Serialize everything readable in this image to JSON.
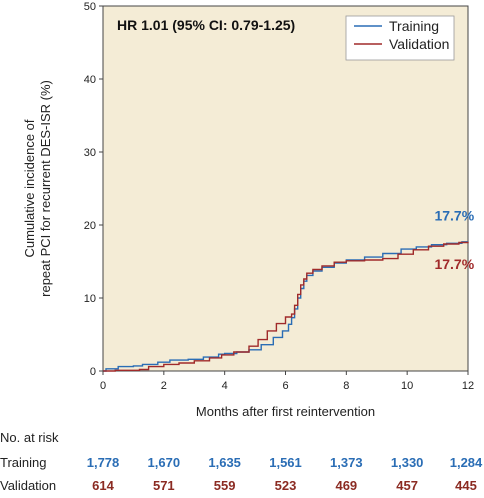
{
  "chart_data": {
    "type": "line",
    "title": "",
    "xlabel": "Months after first reintervention",
    "ylabel_line1": "Cumulative incidence of",
    "ylabel_line2": "repeat PCI for recurrent DES-ISR (%)",
    "xlim": [
      0,
      12
    ],
    "ylim": [
      0,
      50
    ],
    "xticks": [
      "0",
      "2",
      "4",
      "6",
      "8",
      "10",
      "12"
    ],
    "yticks": [
      "0",
      "10",
      "20",
      "30",
      "40",
      "50"
    ],
    "annotation": "HR 1.01 (95% CI: 0.79-1.25)",
    "legend_position": "top-right",
    "background_color": "#f4ecd6",
    "series": [
      {
        "name": "Training",
        "color": "#2a6db5",
        "end_label": "17.7%",
        "x": [
          0,
          0.1,
          0.5,
          1.0,
          1.3,
          1.8,
          2.2,
          2.8,
          3.3,
          3.8,
          4.0,
          4.4,
          4.8,
          5.2,
          5.6,
          5.9,
          6.1,
          6.2,
          6.3,
          6.4,
          6.5,
          6.6,
          6.7,
          6.9,
          7.2,
          7.6,
          8.0,
          8.6,
          9.2,
          9.8,
          10.3,
          10.8,
          11.3,
          11.8,
          12.0
        ],
        "y": [
          0,
          0.3,
          0.6,
          0.7,
          0.9,
          1.2,
          1.5,
          1.6,
          1.9,
          2.3,
          2.4,
          2.6,
          2.9,
          3.6,
          4.6,
          5.5,
          6.4,
          7.3,
          8.5,
          10.0,
          11.3,
          12.3,
          13.1,
          13.7,
          14.2,
          14.8,
          15.2,
          15.6,
          16.1,
          16.7,
          17.0,
          17.3,
          17.5,
          17.7,
          17.7
        ]
      },
      {
        "name": "Validation",
        "color": "#a02a2a",
        "end_label": "17.7%",
        "x": [
          0,
          0.4,
          1.2,
          1.5,
          2.0,
          2.5,
          3.0,
          3.5,
          3.9,
          4.3,
          4.8,
          5.1,
          5.4,
          5.7,
          6.0,
          6.2,
          6.3,
          6.4,
          6.5,
          6.6,
          6.7,
          6.9,
          7.2,
          7.6,
          8.0,
          8.6,
          9.2,
          9.7,
          10.2,
          10.7,
          11.2,
          11.7,
          12.0
        ],
        "y": [
          0,
          0.1,
          0.2,
          0.6,
          0.9,
          1.1,
          1.4,
          1.8,
          2.2,
          2.6,
          3.4,
          4.3,
          5.5,
          6.5,
          7.4,
          7.8,
          9.0,
          10.5,
          11.8,
          12.6,
          13.4,
          13.9,
          14.4,
          14.9,
          15.1,
          15.2,
          15.4,
          16.0,
          16.6,
          17.1,
          17.4,
          17.6,
          17.7
        ]
      }
    ]
  },
  "risk_table": {
    "title": "No. at risk",
    "rows": [
      {
        "label": "Training",
        "color": "#2a6db5",
        "values": [
          "1,778",
          "1,670",
          "1,635",
          "1,561",
          "1,373",
          "1,330",
          "1,284"
        ]
      },
      {
        "label": "Validation",
        "color": "#8b2b22",
        "values": [
          "614",
          "571",
          "559",
          "523",
          "469",
          "457",
          "445"
        ]
      }
    ]
  }
}
